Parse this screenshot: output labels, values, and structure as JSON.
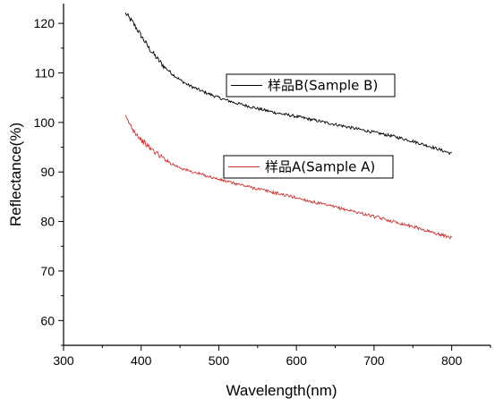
{
  "chart_data": {
    "type": "line",
    "title": "",
    "xlabel": "Wavelength(nm)",
    "ylabel": "Reflectance(%)",
    "xlim": [
      300,
      850
    ],
    "ylim": [
      55,
      124
    ],
    "x_ticks": [
      300,
      400,
      500,
      600,
      700,
      800
    ],
    "y_ticks": [
      60,
      70,
      80,
      90,
      100,
      110,
      120
    ],
    "grid": false,
    "series": [
      {
        "name": "样品B(Sample B)",
        "color": "#000000",
        "legend_position": "upper-middle",
        "points": [
          [
            380,
            122.0
          ],
          [
            390,
            120.0
          ],
          [
            400,
            117.5
          ],
          [
            410,
            115.0
          ],
          [
            420,
            113.0
          ],
          [
            430,
            111.2
          ],
          [
            440,
            109.8
          ],
          [
            450,
            108.6
          ],
          [
            460,
            107.6
          ],
          [
            480,
            106.2
          ],
          [
            500,
            105.0
          ],
          [
            520,
            104.0
          ],
          [
            550,
            102.8
          ],
          [
            575,
            101.9
          ],
          [
            600,
            101.2
          ],
          [
            625,
            100.4
          ],
          [
            650,
            99.6
          ],
          [
            675,
            98.8
          ],
          [
            700,
            98.0
          ],
          [
            725,
            97.2
          ],
          [
            750,
            96.2
          ],
          [
            775,
            95.0
          ],
          [
            800,
            93.7
          ]
        ]
      },
      {
        "name": "样品A(Sample A)",
        "color": "#cc3333",
        "legend_position": "middle",
        "points": [
          [
            380,
            101.0
          ],
          [
            390,
            98.5
          ],
          [
            400,
            96.5
          ],
          [
            410,
            95.0
          ],
          [
            420,
            93.8
          ],
          [
            430,
            92.6
          ],
          [
            440,
            91.6
          ],
          [
            450,
            90.9
          ],
          [
            460,
            90.3
          ],
          [
            480,
            89.4
          ],
          [
            500,
            88.5
          ],
          [
            520,
            87.7
          ],
          [
            550,
            86.6
          ],
          [
            575,
            85.7
          ],
          [
            600,
            84.8
          ],
          [
            625,
            83.8
          ],
          [
            650,
            82.9
          ],
          [
            675,
            82.0
          ],
          [
            700,
            81.0
          ],
          [
            725,
            80.0
          ],
          [
            750,
            79.0
          ],
          [
            775,
            77.8
          ],
          [
            800,
            76.7
          ]
        ]
      }
    ]
  }
}
